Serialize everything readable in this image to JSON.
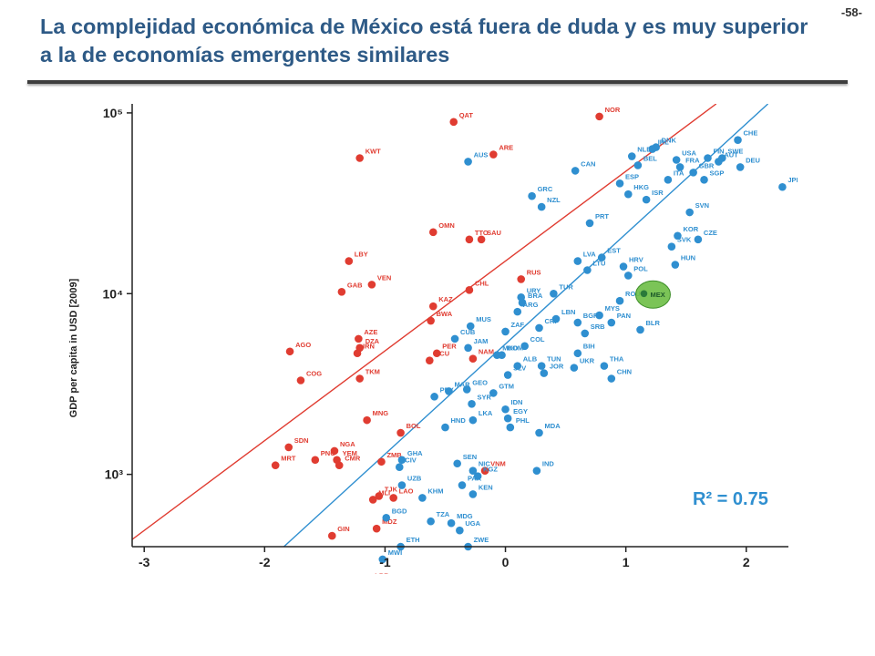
{
  "slide": {
    "title": "La complejidad económica de México está fuera de duda y es muy superior a la de economías emergentes similares",
    "page_number": "-58-"
  },
  "colors": {
    "title": "#2E5A86",
    "red": "#E03C31",
    "blue": "#2F8FD0",
    "highlight": "#6DBE45"
  },
  "chart_data": {
    "type": "scatter",
    "ylabel": "GDP per capita in USD [2009]",
    "xlim": [
      -3.1,
      2.35
    ],
    "ylim_log10": [
      2.6,
      5.05
    ],
    "y_scale": "log",
    "xticks": [
      "-3",
      "-2",
      "-1",
      "0",
      "1",
      "2"
    ],
    "yticks": [
      {
        "v": 3,
        "label": "10³"
      },
      {
        "v": 4,
        "label": "10⁴"
      },
      {
        "v": 5,
        "label": "10⁵"
      }
    ],
    "annotation": "R² = 0.75",
    "highlight_label": "MEX",
    "lines": [
      {
        "color": "red",
        "points": [
          [
            -3.1,
            2.64
          ],
          [
            1.75,
            5.05
          ]
        ]
      },
      {
        "color": "blue",
        "points": [
          [
            -1.84,
            2.6
          ],
          [
            2.18,
            5.05
          ]
        ]
      }
    ],
    "series": [
      {
        "color": "red",
        "points": [
          {
            "label": "NOR",
            "x": 0.78,
            "y": 4.98
          },
          {
            "label": "QAT",
            "x": -0.43,
            "y": 4.95
          },
          {
            "label": "KWT",
            "x": -1.21,
            "y": 4.75
          },
          {
            "label": "ARE",
            "x": -0.1,
            "y": 4.77
          },
          {
            "label": "OMN",
            "x": -0.6,
            "y": 4.34
          },
          {
            "label": "TTO",
            "x": -0.3,
            "y": 4.3
          },
          {
            "label": "SAU",
            "x": -0.2,
            "y": 4.3
          },
          {
            "label": "LBY",
            "x": -1.3,
            "y": 4.18
          },
          {
            "label": "VEN",
            "x": -1.11,
            "y": 4.05
          },
          {
            "label": "GAB",
            "x": -1.36,
            "y": 4.01
          },
          {
            "label": "RUS",
            "x": 0.13,
            "y": 4.08
          },
          {
            "label": "CHL",
            "x": -0.3,
            "y": 4.02
          },
          {
            "label": "KAZ",
            "x": -0.6,
            "y": 3.93
          },
          {
            "label": "BWA",
            "x": -0.62,
            "y": 3.85
          },
          {
            "label": "AZE",
            "x": -1.22,
            "y": 3.75
          },
          {
            "label": "DZA",
            "x": -1.21,
            "y": 3.7
          },
          {
            "label": "IRN",
            "x": -1.23,
            "y": 3.67
          },
          {
            "label": "AGO",
            "x": -1.79,
            "y": 3.68
          },
          {
            "label": "PER",
            "x": -0.57,
            "y": 3.67
          },
          {
            "label": "ECU",
            "x": -0.63,
            "y": 3.63
          },
          {
            "label": "NAM",
            "x": -0.27,
            "y": 3.64
          },
          {
            "label": "TKM",
            "x": -1.21,
            "y": 3.53
          },
          {
            "label": "COG",
            "x": -1.7,
            "y": 3.52
          },
          {
            "label": "MNG",
            "x": -1.15,
            "y": 3.3
          },
          {
            "label": "BOL",
            "x": -0.87,
            "y": 3.23
          },
          {
            "label": "SDN",
            "x": -1.8,
            "y": 3.15
          },
          {
            "label": "NGA",
            "x": -1.42,
            "y": 3.13
          },
          {
            "label": "PNG",
            "x": -1.58,
            "y": 3.08
          },
          {
            "label": "MRT",
            "x": -1.91,
            "y": 3.05
          },
          {
            "label": "YEM",
            "x": -1.4,
            "y": 3.08
          },
          {
            "label": "ZMB",
            "x": -1.03,
            "y": 3.07
          },
          {
            "label": "CMR",
            "x": -1.38,
            "y": 3.05
          },
          {
            "label": "VNM",
            "x": -0.17,
            "y": 3.02
          },
          {
            "label": "TJK",
            "x": -1.05,
            "y": 2.88
          },
          {
            "label": "MLI",
            "x": -1.1,
            "y": 2.86
          },
          {
            "label": "LAO",
            "x": -0.93,
            "y": 2.87
          },
          {
            "label": "GIN",
            "x": -1.44,
            "y": 2.66
          },
          {
            "label": "MDZ",
            "x": -1.07,
            "y": 2.7
          },
          {
            "label": "LBR",
            "x": -1.13,
            "y": 2.4
          }
        ]
      },
      {
        "color": "blue",
        "points": [
          {
            "label": "CHE",
            "x": 1.93,
            "y": 4.85
          },
          {
            "label": "DNK",
            "x": 1.25,
            "y": 4.81
          },
          {
            "label": "NLD",
            "x": 1.05,
            "y": 4.76
          },
          {
            "label": "USA",
            "x": 1.42,
            "y": 4.74
          },
          {
            "label": "FIN",
            "x": 1.68,
            "y": 4.75
          },
          {
            "label": "SWE",
            "x": 1.8,
            "y": 4.75
          },
          {
            "label": "IRL",
            "x": 1.22,
            "y": 4.8
          },
          {
            "label": "BEL",
            "x": 1.1,
            "y": 4.71
          },
          {
            "label": "FRA",
            "x": 1.45,
            "y": 4.7
          },
          {
            "label": "AUT",
            "x": 1.77,
            "y": 4.73
          },
          {
            "label": "GBR",
            "x": 1.56,
            "y": 4.67
          },
          {
            "label": "DEU",
            "x": 1.95,
            "y": 4.7
          },
          {
            "label": "AUS",
            "x": -0.31,
            "y": 4.73
          },
          {
            "label": "CAN",
            "x": 0.58,
            "y": 4.68
          },
          {
            "label": "ESP",
            "x": 0.95,
            "y": 4.61
          },
          {
            "label": "ITA",
            "x": 1.35,
            "y": 4.63
          },
          {
            "label": "SGP",
            "x": 1.65,
            "y": 4.63
          },
          {
            "label": "JPN",
            "x": 2.3,
            "y": 4.59
          },
          {
            "label": "HKG",
            "x": 1.02,
            "y": 4.55
          },
          {
            "label": "GRC",
            "x": 0.22,
            "y": 4.54
          },
          {
            "label": "ISR",
            "x": 1.17,
            "y": 4.52
          },
          {
            "label": "NZL",
            "x": 0.3,
            "y": 4.48
          },
          {
            "label": "SVN",
            "x": 1.53,
            "y": 4.45
          },
          {
            "label": "PRT",
            "x": 0.7,
            "y": 4.39
          },
          {
            "label": "KOR",
            "x": 1.43,
            "y": 4.32
          },
          {
            "label": "CZE",
            "x": 1.6,
            "y": 4.3
          },
          {
            "label": "SVK",
            "x": 1.38,
            "y": 4.26
          },
          {
            "label": "LVA",
            "x": 0.6,
            "y": 4.18
          },
          {
            "label": "EST",
            "x": 0.8,
            "y": 4.2
          },
          {
            "label": "HRV",
            "x": 0.98,
            "y": 4.15
          },
          {
            "label": "HUN",
            "x": 1.41,
            "y": 4.16
          },
          {
            "label": "LTU",
            "x": 0.68,
            "y": 4.13
          },
          {
            "label": "POL",
            "x": 1.02,
            "y": 4.1
          },
          {
            "label": "URY",
            "x": 0.13,
            "y": 3.98
          },
          {
            "label": "TUR",
            "x": 0.4,
            "y": 4.0
          },
          {
            "label": "BRA",
            "x": 0.14,
            "y": 3.95
          },
          {
            "label": "ARG",
            "x": 0.1,
            "y": 3.9
          },
          {
            "label": "LBN",
            "x": 0.42,
            "y": 3.86
          },
          {
            "label": "ROU",
            "x": 0.95,
            "y": 3.96
          },
          {
            "label": "MYS",
            "x": 0.78,
            "y": 3.88
          },
          {
            "label": "MUS",
            "x": -0.29,
            "y": 3.82
          },
          {
            "label": "BGR",
            "x": 0.6,
            "y": 3.84
          },
          {
            "label": "PAN",
            "x": 0.88,
            "y": 3.84
          },
          {
            "label": "ZAF",
            "x": 0.0,
            "y": 3.79
          },
          {
            "label": "CRI",
            "x": 0.28,
            "y": 3.81
          },
          {
            "label": "SRB",
            "x": 0.66,
            "y": 3.78
          },
          {
            "label": "BLR",
            "x": 1.12,
            "y": 3.8
          },
          {
            "label": "CUB",
            "x": -0.42,
            "y": 3.75
          },
          {
            "label": "JAM",
            "x": -0.31,
            "y": 3.7
          },
          {
            "label": "COL",
            "x": 0.16,
            "y": 3.71
          },
          {
            "label": "MKD",
            "x": -0.07,
            "y": 3.66
          },
          {
            "label": "DOM",
            "x": -0.03,
            "y": 3.66
          },
          {
            "label": "BIH",
            "x": 0.6,
            "y": 3.67
          },
          {
            "label": "ALB",
            "x": 0.1,
            "y": 3.6
          },
          {
            "label": "TUN",
            "x": 0.3,
            "y": 3.6
          },
          {
            "label": "SLV",
            "x": 0.02,
            "y": 3.55
          },
          {
            "label": "JOR",
            "x": 0.32,
            "y": 3.56
          },
          {
            "label": "UKR",
            "x": 0.57,
            "y": 3.59
          },
          {
            "label": "THA",
            "x": 0.82,
            "y": 3.6
          },
          {
            "label": "CHN",
            "x": 0.88,
            "y": 3.53
          },
          {
            "label": "MAR",
            "x": -0.47,
            "y": 3.46
          },
          {
            "label": "GEO",
            "x": -0.32,
            "y": 3.47
          },
          {
            "label": "PRY",
            "x": -0.59,
            "y": 3.43
          },
          {
            "label": "GTM",
            "x": -0.1,
            "y": 3.45
          },
          {
            "label": "SYR",
            "x": -0.28,
            "y": 3.39
          },
          {
            "label": "IDN",
            "x": 0.0,
            "y": 3.36
          },
          {
            "label": "EGY",
            "x": 0.02,
            "y": 3.31
          },
          {
            "label": "LKA",
            "x": -0.27,
            "y": 3.3
          },
          {
            "label": "HND",
            "x": -0.5,
            "y": 3.26
          },
          {
            "label": "PHL",
            "x": 0.04,
            "y": 3.26
          },
          {
            "label": "MDA",
            "x": 0.28,
            "y": 3.23
          },
          {
            "label": "GHA",
            "x": -0.86,
            "y": 3.08
          },
          {
            "label": "CIV",
            "x": -0.88,
            "y": 3.04
          },
          {
            "label": "SEN",
            "x": -0.4,
            "y": 3.06
          },
          {
            "label": "NIC",
            "x": -0.27,
            "y": 3.02
          },
          {
            "label": "KGZ",
            "x": -0.23,
            "y": 2.99
          },
          {
            "label": "IND",
            "x": 0.26,
            "y": 3.02
          },
          {
            "label": "UZB",
            "x": -0.86,
            "y": 2.94
          },
          {
            "label": "PAK",
            "x": -0.36,
            "y": 2.94
          },
          {
            "label": "KEN",
            "x": -0.27,
            "y": 2.89
          },
          {
            "label": "KHM",
            "x": -0.69,
            "y": 2.87
          },
          {
            "label": "BGD",
            "x": -0.99,
            "y": 2.76
          },
          {
            "label": "TZA",
            "x": -0.62,
            "y": 2.74
          },
          {
            "label": "MDG",
            "x": -0.45,
            "y": 2.73
          },
          {
            "label": "UGA",
            "x": -0.38,
            "y": 2.69
          },
          {
            "label": "ZWE",
            "x": -0.31,
            "y": 2.6
          },
          {
            "label": "ETH",
            "x": -0.87,
            "y": 2.6
          },
          {
            "label": "MWI",
            "x": -1.02,
            "y": 2.53
          }
        ]
      },
      {
        "color": "highlight",
        "points": [
          {
            "label": "MEX",
            "x": 1.15,
            "y": 4.0
          }
        ]
      }
    ]
  }
}
